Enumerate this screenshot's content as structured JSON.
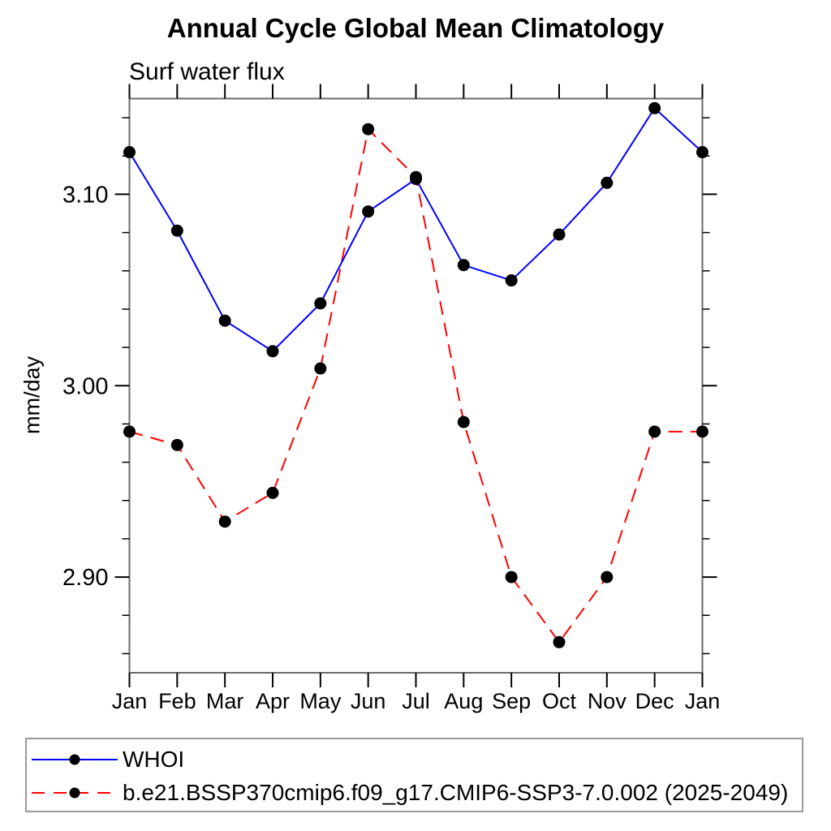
{
  "page": {
    "background": "#ffffff"
  },
  "chart_data": {
    "type": "line",
    "title": "Annual Cycle Global Mean Climatology",
    "subtitle": "Surf water flux",
    "ylabel": "mm/day",
    "x_categories": [
      "Jan",
      "Feb",
      "Mar",
      "Apr",
      "May",
      "Jun",
      "Jul",
      "Aug",
      "Sep",
      "Oct",
      "Nov",
      "Dec",
      "Jan"
    ],
    "ylim": [
      2.85,
      3.15
    ],
    "yticks_major": [
      2.9,
      3.0,
      3.1
    ],
    "ytick_minor_step": 0.02,
    "ytick_label_format": "2-decimals",
    "grid": false,
    "legend_position": "bottom-left",
    "axis_color": "#6b6b6b",
    "tick_color": "#000000",
    "text_color": "#000000",
    "marker_color": "#000000",
    "series": [
      {
        "name": "WHOI",
        "color": "#0000ff",
        "line_style": "solid",
        "marker": "circle",
        "values": [
          3.122,
          3.081,
          3.034,
          3.018,
          3.043,
          3.091,
          3.108,
          3.063,
          3.055,
          3.079,
          3.106,
          3.145,
          3.122
        ]
      },
      {
        "name": "b.e21.BSSP370cmip6.f09_g17.CMIP6-SSP3-7.0.002 (2025-2049)",
        "color": "#ff0000",
        "line_style": "dashed",
        "marker": "circle",
        "values": [
          2.976,
          2.969,
          2.929,
          2.944,
          3.009,
          3.134,
          3.109,
          2.981,
          2.9,
          2.866,
          2.9,
          2.976,
          2.976
        ]
      }
    ]
  }
}
